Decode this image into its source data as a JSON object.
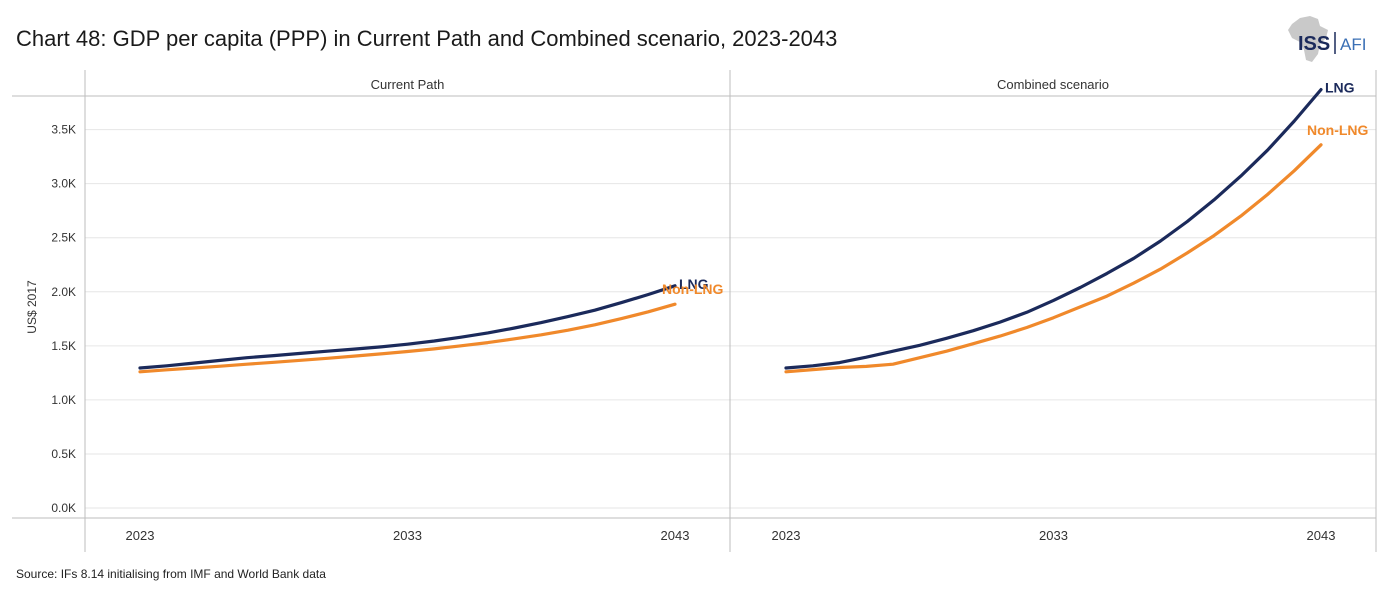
{
  "title": "Chart 48: GDP per capita (PPP) in Current Path and Combined scenario, 2023-2043",
  "source": "Source: IFs 8.14 initialising from IMF and World Bank data",
  "logo": {
    "left_text": "ISS",
    "right_text": "AFI",
    "color_dark": "#1b2a5b",
    "color_light": "#3a6fb5",
    "map_color": "#c9c9c9"
  },
  "colors": {
    "lng": "#1b2a5b",
    "non_lng": "#f0892b",
    "grid": "#e6e6e6",
    "axis": "#bdbdbd"
  },
  "chart_data": {
    "type": "line",
    "ylabel": "US$ 2017",
    "ylim": [
      0,
      3900
    ],
    "yticks": [
      0,
      500,
      1000,
      1500,
      2000,
      2500,
      3000,
      3500
    ],
    "ytick_labels": [
      "0.0K",
      "0.5K",
      "1.0K",
      "1.5K",
      "2.0K",
      "2.5K",
      "3.0K",
      "3.5K"
    ],
    "xlim": [
      2023,
      2043
    ],
    "xticks": [
      2023,
      2033,
      2043
    ],
    "xtick_labels": [
      "2023",
      "2033",
      "2043"
    ],
    "x": [
      2023,
      2024,
      2025,
      2026,
      2027,
      2028,
      2029,
      2030,
      2031,
      2032,
      2033,
      2034,
      2035,
      2036,
      2037,
      2038,
      2039,
      2040,
      2041,
      2042,
      2043
    ],
    "panels": [
      {
        "name": "Current Path",
        "series": [
          {
            "name": "LNG",
            "label": "LNG",
            "values": [
              1295,
              1315,
              1340,
              1365,
              1390,
              1410,
              1430,
              1450,
              1470,
              1490,
              1515,
              1545,
              1580,
              1620,
              1665,
              1715,
              1770,
              1830,
              1900,
              1975,
              2055
            ]
          },
          {
            "name": "Non-LNG",
            "label": "Non-LNG",
            "values": [
              1260,
              1278,
              1295,
              1312,
              1330,
              1348,
              1366,
              1385,
              1405,
              1425,
              1448,
              1472,
              1500,
              1530,
              1565,
              1602,
              1645,
              1695,
              1752,
              1815,
              1885
            ]
          }
        ]
      },
      {
        "name": "Combined scenario",
        "series": [
          {
            "name": "LNG",
            "label": "LNG",
            "values": [
              1295,
              1315,
              1345,
              1395,
              1450,
              1505,
              1570,
              1640,
              1720,
              1810,
              1920,
              2040,
              2170,
              2310,
              2470,
              2650,
              2850,
              3070,
              3310,
              3580,
              3870
            ]
          },
          {
            "name": "Non-LNG",
            "label": "Non-LNG",
            "values": [
              1260,
              1280,
              1300,
              1310,
              1330,
              1390,
              1450,
              1520,
              1590,
              1670,
              1760,
              1860,
              1960,
              2080,
              2210,
              2360,
              2520,
              2700,
              2900,
              3120,
              3360
            ]
          }
        ]
      }
    ]
  }
}
